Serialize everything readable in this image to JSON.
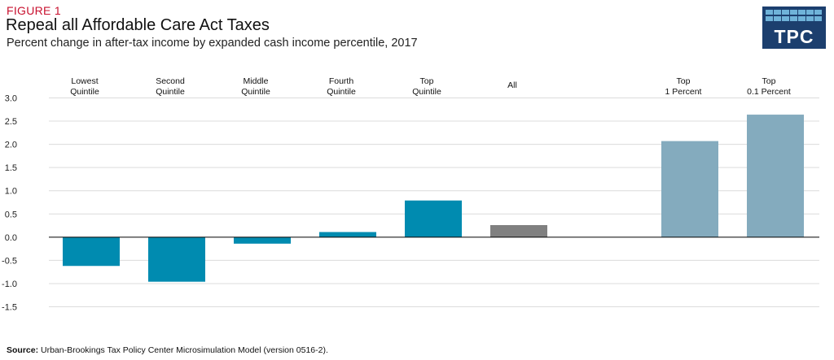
{
  "header": {
    "figure_label": "FIGURE 1",
    "title": "Repeal all Affordable Care Act Taxes",
    "subtitle": "Percent change in after-tax income by expanded cash income percentile, 2017"
  },
  "logo": {
    "text": "TPC",
    "background": "#1c3f6e",
    "accent": "#6fb3d9"
  },
  "source": {
    "label": "Source:",
    "text": "Urban-Brookings Tax Policy Center Microsimulation Model (version 0516-2)."
  },
  "chart_data": {
    "type": "bar",
    "title": "Repeal all Affordable Care Act Taxes",
    "categories": [
      [
        "Lowest",
        "Quintile"
      ],
      [
        "Second",
        "Quintile"
      ],
      [
        "Middle",
        "Quintile"
      ],
      [
        "Fourth",
        "Quintile"
      ],
      [
        "Top",
        "Quintile"
      ],
      [
        "All"
      ],
      [
        "Top",
        "1 Percent"
      ],
      [
        "Top",
        "0.1 Percent"
      ]
    ],
    "values": [
      -0.62,
      -0.96,
      -0.14,
      0.11,
      0.79,
      0.26,
      2.07,
      2.64
    ],
    "colors": [
      "#008bb0",
      "#008bb0",
      "#008bb0",
      "#008bb0",
      "#008bb0",
      "#808080",
      "#84abbe",
      "#84abbe"
    ],
    "ylim": [
      -1.5,
      3.0
    ],
    "yticks": [
      "3.0",
      "2.5",
      "2.0",
      "1.5",
      "1.0",
      "0.5",
      "0.0",
      "-0.5",
      "-1.0",
      "-1.5"
    ],
    "ytick_values": [
      3.0,
      2.5,
      2.0,
      1.5,
      1.0,
      0.5,
      0.0,
      -0.5,
      -1.0,
      -1.5
    ],
    "grid": true,
    "legend": "none"
  }
}
